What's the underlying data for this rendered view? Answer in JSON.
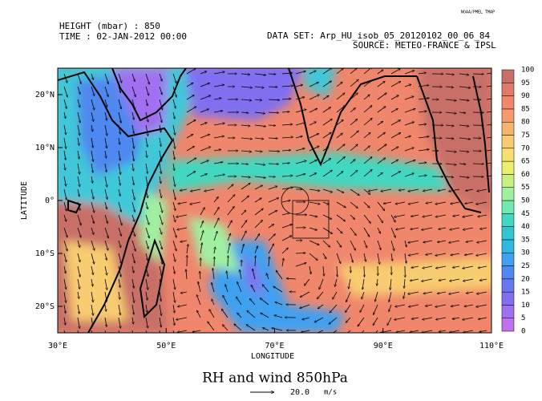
{
  "header": {
    "height": "HEIGHT (mbar) : 850",
    "time": "TIME : 02-JAN-2012 00:00",
    "dataset": "DATA SET: Arp_HU_isob_05_20120102_00_06_84",
    "source": "SOURCE: METEO-FRANCE & IPSL",
    "logo": "NOAA/PMEL TMAP"
  },
  "map": {
    "xlabel": "LONGITUDE",
    "ylabel": "LATITUDE",
    "xlim": [
      30,
      110
    ],
    "ylim": [
      -25,
      25
    ],
    "xticks": [
      {
        "value": 30,
        "label": "30°E"
      },
      {
        "value": 50,
        "label": "50°E"
      },
      {
        "value": 70,
        "label": "70°E"
      },
      {
        "value": 90,
        "label": "90°E"
      },
      {
        "value": 110,
        "label": "110°E"
      }
    ],
    "yticks": [
      {
        "value": 20,
        "label": "20°N"
      },
      {
        "value": 10,
        "label": "10°N"
      },
      {
        "value": 0,
        "label": "0°"
      },
      {
        "value": -10,
        "label": "10°S"
      },
      {
        "value": -20,
        "label": "20°S"
      }
    ]
  },
  "colorbar": {
    "levels": [
      0,
      5,
      10,
      15,
      20,
      25,
      30,
      35,
      40,
      45,
      50,
      55,
      60,
      65,
      70,
      75,
      80,
      85,
      90,
      95,
      100
    ],
    "colors": [
      "#c070f0",
      "#a070f0",
      "#8070f0",
      "#6878f0",
      "#5088f0",
      "#40a0f0",
      "#30b8e0",
      "#30c8d0",
      "#40d8c0",
      "#70e8b0",
      "#a0f0a0",
      "#c8f080",
      "#e8f070",
      "#f5e070",
      "#f8cc70",
      "#f5b46e",
      "#f59b6e",
      "#f0866c",
      "#e07a6a",
      "#c87068"
    ]
  },
  "title": "RH and wind 850hPa",
  "reference_vector": {
    "value": {
      "value": 20,
      "label": "20.0"
    },
    "unit": "m/s"
  }
}
